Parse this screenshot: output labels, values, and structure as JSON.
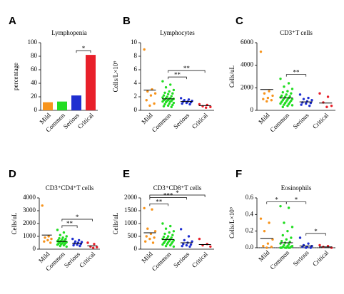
{
  "chart_data": [
    {
      "type": "bar",
      "panel": "A",
      "title": "Lymphopenia",
      "ylabel": "percentage",
      "categories": [
        "Mild",
        "Common",
        "Serious",
        "Critical"
      ],
      "values": [
        12,
        13,
        22,
        82
      ],
      "colors": [
        "#f7941d",
        "#22dd22",
        "#1f2fd0",
        "#e8202a"
      ],
      "ylim": [
        0,
        100
      ],
      "yticks": [
        0,
        20,
        40,
        60,
        80,
        100
      ],
      "annotations": [
        {
          "between": [
            "Serious",
            "Critical"
          ],
          "label": "*"
        }
      ]
    },
    {
      "type": "dot",
      "panel": "B",
      "title": "Lymphocytes",
      "ylabel": "Cells/L×10⁹",
      "ylim": [
        0,
        10
      ],
      "yticks": [
        0,
        2,
        4,
        6,
        8,
        10
      ],
      "series": [
        {
          "name": "Mild",
          "color": "#f7941d",
          "values": [
            9,
            3.1,
            2.8,
            2.5,
            2.2,
            1.5,
            1.0,
            0.7
          ],
          "mean": 3.0
        },
        {
          "name": "Common",
          "color": "#22dd22",
          "values": [
            4.3,
            3.8,
            3.4,
            3.0,
            2.8,
            2.6,
            2.5,
            2.4,
            2.2,
            2.1,
            2.0,
            1.9,
            1.8,
            1.8,
            1.7,
            1.7,
            1.6,
            1.6,
            1.5,
            1.5,
            1.4,
            1.4,
            1.3,
            1.3,
            1.2,
            1.1,
            1.0,
            0.9,
            0.8,
            0.7,
            0.6,
            0.5
          ],
          "mean": 1.7
        },
        {
          "name": "Serious",
          "color": "#1f2fd0",
          "values": [
            1.8,
            1.6,
            1.5,
            1.4,
            1.3,
            1.3,
            1.2,
            1.1,
            1.0,
            0.9
          ],
          "mean": 1.3
        },
        {
          "name": "Critical",
          "color": "#e8202a",
          "values": [
            0.9,
            0.8,
            0.6,
            0.5,
            0.4
          ],
          "mean": 0.7
        }
      ],
      "annotations": [
        {
          "between": [
            "Common",
            "Serious"
          ],
          "label": "**"
        },
        {
          "between": [
            "Common",
            "Critical"
          ],
          "label": "**"
        }
      ]
    },
    {
      "type": "dot",
      "panel": "C",
      "title": "CD3⁺T cells",
      "ylabel": "Cells/uL",
      "ylim": [
        0,
        6000
      ],
      "yticks": [
        0,
        2000,
        4000,
        6000
      ],
      "series": [
        {
          "name": "Mild",
          "color": "#f7941d",
          "values": [
            5200,
            1700,
            1500,
            1300,
            1100,
            1000,
            900,
            800
          ],
          "mean": 1850
        },
        {
          "name": "Common",
          "color": "#22dd22",
          "values": [
            2800,
            2400,
            2100,
            1900,
            1700,
            1600,
            1500,
            1400,
            1300,
            1250,
            1200,
            1150,
            1100,
            1050,
            1000,
            950,
            900,
            850,
            800,
            750,
            700,
            650,
            600,
            550,
            500,
            450,
            400,
            300
          ],
          "mean": 1100
        },
        {
          "name": "Serious",
          "color": "#1f2fd0",
          "values": [
            1400,
            1100,
            1000,
            900,
            800,
            700,
            650,
            600,
            500,
            400
          ],
          "mean": 750
        },
        {
          "name": "Critical",
          "color": "#e8202a",
          "values": [
            1500,
            1200,
            700,
            400,
            300
          ],
          "mean": 650
        }
      ],
      "annotations": [
        {
          "between": [
            "Common",
            "Serious"
          ],
          "label": "**"
        }
      ]
    },
    {
      "type": "dot",
      "panel": "D",
      "title": "CD3⁺CD4⁺T cells",
      "ylabel": "Cells/uL",
      "ylim": [
        0,
        4000
      ],
      "yticks": [
        0,
        1000,
        2000,
        3000,
        4000
      ],
      "series": [
        {
          "name": "Mild",
          "color": "#f7941d",
          "values": [
            3400,
            1000,
            900,
            800,
            700,
            600,
            500
          ],
          "mean": 1100
        },
        {
          "name": "Common",
          "color": "#22dd22",
          "values": [
            1500,
            1300,
            1100,
            1000,
            900,
            850,
            800,
            750,
            700,
            680,
            650,
            620,
            600,
            580,
            550,
            520,
            500,
            480,
            450,
            420,
            400,
            380,
            350,
            300,
            250,
            200
          ],
          "mean": 600
        },
        {
          "name": "Serious",
          "color": "#1f2fd0",
          "values": [
            800,
            700,
            600,
            550,
            500,
            450,
            400,
            350,
            300,
            250
          ],
          "mean": 450
        },
        {
          "name": "Critical",
          "color": "#e8202a",
          "values": [
            500,
            400,
            200,
            150,
            100
          ],
          "mean": 260
        }
      ],
      "annotations": [
        {
          "between": [
            "Common",
            "Serious"
          ],
          "label": "**"
        },
        {
          "between": [
            "Common",
            "Critical"
          ],
          "label": "*"
        }
      ]
    },
    {
      "type": "dot",
      "panel": "E",
      "title": "CD3⁺CD8⁺T cells",
      "ylabel": "Cells/uL",
      "ylim": [
        0,
        2000
      ],
      "yticks": [
        0,
        500,
        1000,
        1500,
        2000
      ],
      "series": [
        {
          "name": "Mild",
          "color": "#f7941d",
          "values": [
            1600,
            1550,
            800,
            700,
            600,
            500,
            450,
            400,
            300,
            250
          ],
          "mean": 640
        },
        {
          "name": "Common",
          "color": "#22dd22",
          "values": [
            1000,
            900,
            800,
            700,
            650,
            600,
            550,
            500,
            480,
            450,
            420,
            400,
            380,
            360,
            340,
            320,
            300,
            280,
            260,
            240,
            220,
            200,
            180,
            150,
            120,
            100
          ],
          "mean": 380
        },
        {
          "name": "Serious",
          "color": "#1f2fd0",
          "values": [
            780,
            500,
            350,
            300,
            250,
            200,
            180,
            150,
            120,
            100
          ],
          "mean": 250
        },
        {
          "name": "Critical",
          "color": "#e8202a",
          "values": [
            400,
            200,
            150,
            100
          ],
          "mean": 180
        }
      ],
      "annotations": [
        {
          "between": [
            "Mild",
            "Common"
          ],
          "label": "**"
        },
        {
          "between": [
            "Mild",
            "Serious"
          ],
          "label": "***"
        },
        {
          "between": [
            "Mild",
            "Critical"
          ],
          "label": "*"
        }
      ]
    },
    {
      "type": "dot",
      "panel": "F",
      "title": "Eosinophils",
      "ylabel": "Cells/L×10⁹",
      "ylim": [
        0,
        0.6
      ],
      "yticks": [
        {
          "value": 0,
          "label": "0.0"
        },
        0.2,
        0.4,
        0.6
      ],
      "zero_line": "dotted",
      "series": [
        {
          "name": "Mild",
          "color": "#f7941d",
          "values": [
            0.35,
            0.3,
            0.2,
            0.1,
            0.05,
            0.02,
            0.01,
            0
          ],
          "mean": 0.11
        },
        {
          "name": "Common",
          "color": "#22dd22",
          "values": [
            0.5,
            0.48,
            0.3,
            0.25,
            0.2,
            0.15,
            0.12,
            0.1,
            0.08,
            0.07,
            0.06,
            0.05,
            0.04,
            0.03,
            0.02,
            0.02,
            0.01,
            0.01,
            0,
            0,
            0,
            0,
            0,
            0
          ],
          "mean": 0.06
        },
        {
          "name": "Serious",
          "color": "#1f2fd0",
          "values": [
            0.12,
            0.05,
            0.03,
            0.02,
            0.01,
            0.01,
            0,
            0
          ],
          "mean": 0.02
        },
        {
          "name": "Critical",
          "color": "#e8202a",
          "values": [
            0.03,
            0.02,
            0.01,
            0
          ],
          "mean": 0.01
        }
      ],
      "annotations": [
        {
          "between": [
            "Mild",
            "Common"
          ],
          "label": "*"
        },
        {
          "between": [
            "Common",
            "Serious"
          ],
          "label": "*"
        },
        {
          "between": [
            "Serious",
            "Critical"
          ],
          "label": "*"
        }
      ]
    }
  ]
}
